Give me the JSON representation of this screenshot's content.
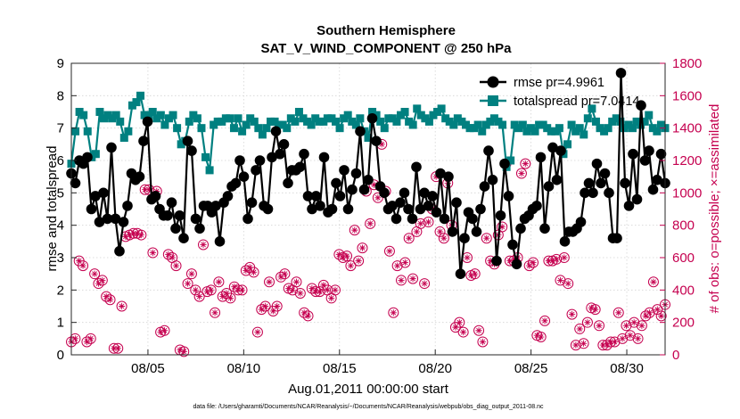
{
  "chart_data": {
    "type": "line",
    "title": "Southern Hemisphere",
    "subtitle": "SAT_V_WIND_COMPONENT @ 250 hPa",
    "xlabel": "Aug.01,2011 00:00:00 start",
    "ylabel": "rmse and totalspread",
    "ylabel_right": "# of obs: o=possible; ×=assimilated",
    "footnote": "data file: /Users/gharamti/Documents/NCAR/Reanalysis/~/Documents/NCAR/Reanalysis/webpub/obs_diag_output_2011-08.nc",
    "x_domain_days": [
      1,
      32
    ],
    "xlim": [
      1,
      32
    ],
    "ylim": [
      0,
      9
    ],
    "ylim_right": [
      0,
      1800
    ],
    "x_ticks": [
      {
        "day": 5,
        "label": "08/05"
      },
      {
        "day": 10,
        "label": "08/10"
      },
      {
        "day": 15,
        "label": "08/15"
      },
      {
        "day": 20,
        "label": "08/20"
      },
      {
        "day": 25,
        "label": "08/25"
      },
      {
        "day": 30,
        "label": "08/30"
      }
    ],
    "y_ticks": [
      "0",
      "1",
      "2",
      "3",
      "4",
      "5",
      "6",
      "7",
      "8",
      "9"
    ],
    "y_ticks_right": [
      "0",
      "200",
      "400",
      "600",
      "800",
      "1000",
      "1200",
      "1400",
      "1600",
      "1800"
    ],
    "grid": true,
    "legend_position": "top-right",
    "colors": {
      "rmse": "#000000",
      "totalspread": "#008080",
      "obs": "#c5004f"
    },
    "legend": [
      {
        "label": "rmse pr=4.9961",
        "color": "#000000",
        "marker": "circle"
      },
      {
        "label": "totalspread pr=7.0414",
        "color": "#008080",
        "marker": "square"
      }
    ],
    "series": [
      {
        "name": "rmse",
        "color": "#000000",
        "marker": "circle",
        "values": [
          5.6,
          5.3,
          6.0,
          5.9,
          6.1,
          4.5,
          4.9,
          4.1,
          5.0,
          4.2,
          6.4,
          4.2,
          3.2,
          4.1,
          4.6,
          5.6,
          5.4,
          5.5,
          6.6,
          7.2,
          4.8,
          4.9,
          4.5,
          4.3,
          4.3,
          4.7,
          3.9,
          4.3,
          3.6,
          6.6,
          6.3,
          4.2,
          3.9,
          4.6,
          4.6,
          4.4,
          4.6,
          3.5,
          4.7,
          4.9,
          5.2,
          5.3,
          6.0,
          5.5,
          4.2,
          4.7,
          5.7,
          6.0,
          4.6,
          4.5,
          6.1,
          6.9,
          6.2,
          6.5,
          5.3,
          5.7,
          5.7,
          5.8,
          6.2,
          4.9,
          4.5,
          4.9,
          4.6,
          6.1,
          4.4,
          4.5,
          5.3,
          4.9,
          5.7,
          4.5,
          5.1,
          5.6,
          6.9,
          5.1,
          5.4,
          7.3,
          6.6,
          5.2,
          5.0,
          4.5,
          4.6,
          4.2,
          4.7,
          5.0,
          4.5,
          4.2,
          5.8,
          4.5,
          5.0,
          4.6,
          4.9,
          4.4,
          5.6,
          4.2,
          5.5,
          3.8,
          4.7,
          2.5,
          3.6,
          4.4,
          4.2,
          3.8,
          4.5,
          5.2,
          6.3,
          5.4,
          2.9,
          4.3,
          5.9,
          4.9,
          3.4,
          2.8,
          3.9,
          4.2,
          4.3,
          4.5,
          4.6,
          6.1,
          3.9,
          5.2,
          6.4,
          5.4,
          6.3,
          3.5,
          3.8,
          3.8,
          3.9,
          4.1,
          5.0,
          5.3,
          5.0,
          5.9,
          5.3,
          5.6,
          5.0,
          3.6,
          3.6,
          8.7,
          5.3,
          4.6,
          6.2,
          4.8,
          7.7,
          6.0,
          6.3,
          5.1,
          5.4,
          6.2,
          5.3
        ]
      },
      {
        "name": "totalspread",
        "color": "#008080",
        "marker": "square",
        "values": [
          5.9,
          6.9,
          7.5,
          7.4,
          6.9,
          6.1,
          6.2,
          7.5,
          7.3,
          7.4,
          7.3,
          7.4,
          7.2,
          6.7,
          6.9,
          7.7,
          7.8,
          8.0,
          7.4,
          7.4,
          7.5,
          7.3,
          7.4,
          7.1,
          7.3,
          7.4,
          7.0,
          6.5,
          6.6,
          7.2,
          7.4,
          7.3,
          7.0,
          6.1,
          5.7,
          7.1,
          7.2,
          7.2,
          7.3,
          7.3,
          7.0,
          7.3,
          6.9,
          7.1,
          7.3,
          7.2,
          7.0,
          6.8,
          7.0,
          7.2,
          7.2,
          7.1,
          7.1,
          7.0,
          7.3,
          7.2,
          7.5,
          7.3,
          7.2,
          7.1,
          7.3,
          7.2,
          7.2,
          7.3,
          7.3,
          7.2,
          7.0,
          7.3,
          7.4,
          7.2,
          7.1,
          7.3,
          6.9,
          6.7,
          7.5,
          7.4,
          7.2,
          7.0,
          7.3,
          7.3,
          7.2,
          7.4,
          7.5,
          7.2,
          7.1,
          7.6,
          7.4,
          7.3,
          7.2,
          7.4,
          7.5,
          7.6,
          7.3,
          7.2,
          7.1,
          7.3,
          7.2,
          7.1,
          7.0,
          7.0,
          7.1,
          6.9,
          7.1,
          7.2,
          7.3,
          7.2,
          7.1,
          5.8,
          6.0,
          7.1,
          7.0,
          7.1,
          6.9,
          7.0,
          6.9,
          7.1,
          7.1,
          7.0,
          6.9,
          6.9,
          7.0,
          6.2,
          6.5,
          7.1,
          6.9,
          7.0,
          6.8,
          7.3,
          7.6,
          7.2,
          7.0,
          6.9,
          7.0,
          7.2,
          7.3,
          7.2,
          7.0,
          7.1,
          7.0,
          7.2,
          7.1,
          7.2,
          7.4,
          7.0,
          6.9,
          7.1,
          7.0
        ]
      },
      {
        "name": "obs possible",
        "color": "#c5004f",
        "marker": "open-circle",
        "values": [
          80,
          100,
          580,
          550,
          80,
          100,
          500,
          440,
          460,
          360,
          340,
          40,
          40,
          300,
          730,
          740,
          750,
          750,
          740,
          1020,
          1020,
          630,
          1010,
          140,
          150,
          620,
          600,
          550,
          30,
          20,
          440,
          500,
          400,
          360,
          680,
          390,
          400,
          260,
          450,
          360,
          380,
          350,
          420,
          400,
          400,
          520,
          540,
          510,
          140,
          280,
          300,
          450,
          270,
          300,
          480,
          500,
          410,
          400,
          450,
          380,
          260,
          240,
          410,
          390,
          390,
          430,
          400,
          350,
          400,
          620,
          600,
          610,
          550,
          770,
          580,
          660,
          1010,
          810,
          1050,
          970,
          1300,
          1010,
          640,
          260,
          550,
          460,
          570,
          720,
          470,
          760,
          810,
          440,
          820,
          900,
          1100,
          760,
          720,
          1060,
          800,
          170,
          200,
          140,
          600,
          490,
          500,
          150,
          80,
          720,
          580,
          560,
          740,
          790,
          1180,
          580,
          580,
          600,
          1120,
          1180,
          550,
          570,
          120,
          110,
          210,
          580,
          580,
          590,
          460,
          600,
          440,
          250,
          60,
          160,
          70,
          200,
          290,
          280,
          180,
          60,
          60,
          80,
          80,
          260,
          100,
          180,
          120,
          200,
          100,
          180,
          240,
          260,
          450,
          280,
          240,
          310
        ]
      }
    ]
  }
}
